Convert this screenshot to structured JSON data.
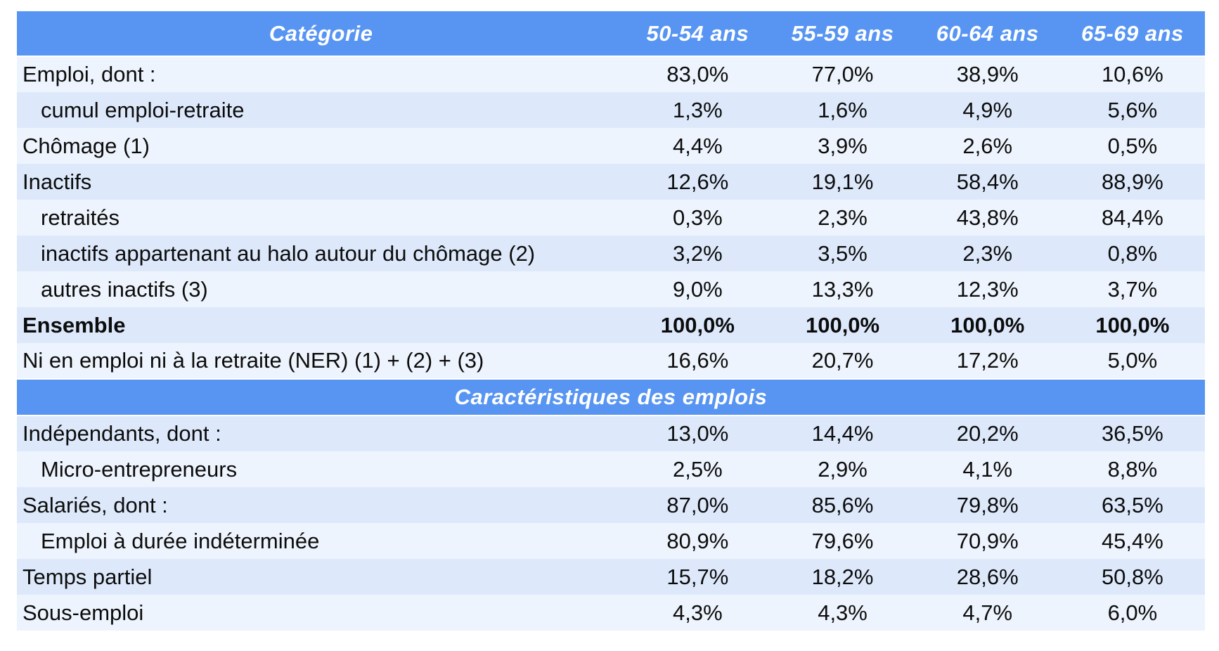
{
  "colors": {
    "header_blue": "#5895f2",
    "row_light": "#eef4fd",
    "row_dark": "#dde9fb",
    "header_text": "#ffffff",
    "body_text": "#0c0c0c"
  },
  "table": {
    "header": {
      "category": "Catégorie",
      "age_columns": [
        "50-54 ans",
        "55-59 ans",
        "60-64 ans",
        "65-69 ans"
      ]
    },
    "rows": [
      {
        "label": "Emploi, dont :",
        "indent": 0,
        "values": [
          "83,0%",
          "77,0%",
          "38,9%",
          "10,6%"
        ]
      },
      {
        "label": "cumul emploi-retraite",
        "indent": 1,
        "values": [
          "1,3%",
          "1,6%",
          "4,9%",
          "5,6%"
        ]
      },
      {
        "label": "Chômage (1)",
        "indent": 0,
        "values": [
          "4,4%",
          "3,9%",
          "2,6%",
          "0,5%"
        ]
      },
      {
        "label": "Inactifs",
        "indent": 0,
        "values": [
          "12,6%",
          "19,1%",
          "58,4%",
          "88,9%"
        ]
      },
      {
        "label": "retraités",
        "indent": 1,
        "values": [
          "0,3%",
          "2,3%",
          "43,8%",
          "84,4%"
        ]
      },
      {
        "label": "inactifs appartenant au halo autour du chômage (2)",
        "indent": 1,
        "values": [
          "3,2%",
          "3,5%",
          "2,3%",
          "0,8%"
        ]
      },
      {
        "label": "autres inactifs (3)",
        "indent": 1,
        "values": [
          "9,0%",
          "13,3%",
          "12,3%",
          "3,7%"
        ]
      },
      {
        "label": "Ensemble",
        "indent": 0,
        "bold": true,
        "values": [
          "100,0%",
          "100,0%",
          "100,0%",
          "100,0%"
        ]
      },
      {
        "label": "Ni en emploi ni à la retraite (NER) (1) + (2) + (3)",
        "indent": 0,
        "values": [
          "16,6%",
          "20,7%",
          "17,2%",
          "5,0%"
        ]
      }
    ],
    "section_header": "Caractéristiques des emplois",
    "rows2": [
      {
        "label": "Indépendants, dont :",
        "indent": 0,
        "values": [
          "13,0%",
          "14,4%",
          "20,2%",
          "36,5%"
        ]
      },
      {
        "label": "Micro-entrepreneurs",
        "indent": 1,
        "values": [
          "2,5%",
          "2,9%",
          "4,1%",
          "8,8%"
        ]
      },
      {
        "label": "Salariés, dont :",
        "indent": 0,
        "values": [
          "87,0%",
          "85,6%",
          "79,8%",
          "63,5%"
        ]
      },
      {
        "label": "Emploi à durée indéterminée",
        "indent": 1,
        "values": [
          "80,9%",
          "79,6%",
          "70,9%",
          "45,4%"
        ]
      },
      {
        "label": "Temps partiel",
        "indent": 0,
        "values": [
          "15,7%",
          "18,2%",
          "28,6%",
          "50,8%"
        ]
      },
      {
        "label": "Sous-emploi",
        "indent": 0,
        "values": [
          "4,3%",
          "4,3%",
          "4,7%",
          "6,0%"
        ]
      }
    ]
  }
}
